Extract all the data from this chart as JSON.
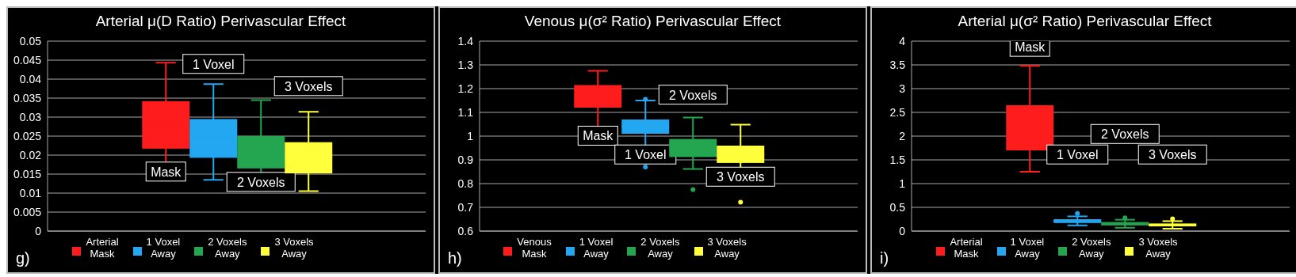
{
  "chart_data": [
    {
      "type": "box",
      "title": "Arterial μ(D Ratio) Perivascular Effect",
      "categories": [
        null
      ],
      "ylim": [
        0,
        0.05
      ],
      "yticks": [
        0,
        0.005,
        0.01,
        0.015,
        0.02,
        0.025,
        0.03,
        0.035,
        0.04,
        0.045,
        0.05
      ],
      "grid": "y",
      "legend": "bottom",
      "series": [
        {
          "name": "Arterial Mask",
          "color": "#ff1c1c",
          "boxes": [
            {
              "low": 0.0143,
              "q1": 0.0217,
              "median": 0.028,
              "q3": 0.0342,
              "high": 0.0443
            }
          ]
        },
        {
          "name": "1 Voxel Away",
          "color": "#22a7f0",
          "boxes": [
            {
              "low": 0.0135,
              "q1": 0.0193,
              "median": 0.0244,
              "q3": 0.0295,
              "high": 0.0387
            }
          ]
        },
        {
          "name": "2 Voxels Away",
          "color": "#24a650",
          "boxes": [
            {
              "low": 0.012,
              "q1": 0.0165,
              "median": 0.0208,
              "q3": 0.025,
              "high": 0.0345
            }
          ]
        },
        {
          "name": "3 Voxels Away",
          "color": "#ffff3c",
          "boxes": [
            {
              "low": 0.0105,
              "q1": 0.0152,
              "median": 0.0193,
              "q3": 0.0234,
              "high": 0.0314
            }
          ]
        }
      ],
      "annotations": [
        "Mask",
        "1 Voxel",
        "2 Voxels",
        "3 Voxels",
        "g)"
      ]
    },
    {
      "type": "box",
      "title": "Venous μ(σ² Ratio) Perivascular Effect",
      "categories": [
        null
      ],
      "ylim": [
        0.6,
        1.4
      ],
      "yticks": [
        0.6,
        0.7,
        0.8,
        0.9,
        1,
        1.1,
        1.2,
        1.3,
        1.4
      ],
      "grid": "y",
      "legend": "bottom",
      "series": [
        {
          "name": "Venous Mask",
          "color": "#ff1c1c",
          "boxes": [
            {
              "low": 1.0,
              "q1": 1.12,
              "median": 1.17,
              "q3": 1.215,
              "high": 1.275
            }
          ]
        },
        {
          "name": "1 Voxel Away",
          "color": "#22a7f0",
          "boxes": [
            {
              "low": 0.935,
              "q1": 1.01,
              "median": 1.04,
              "q3": 1.07,
              "high": 1.15,
              "outliers": [
                0.87,
                1.155
              ]
            }
          ]
        },
        {
          "name": "2 Voxels Away",
          "color": "#24a650",
          "boxes": [
            {
              "low": 0.862,
              "q1": 0.912,
              "median": 0.95,
              "q3": 0.988,
              "high": 1.078,
              "outliers": [
                0.775
              ]
            }
          ]
        },
        {
          "name": "3 Voxels Away",
          "color": "#ffff3c",
          "boxes": [
            {
              "low": 0.83,
              "q1": 0.887,
              "median": 0.92,
              "q3": 0.96,
              "high": 1.048,
              "outliers": [
                0.722
              ]
            }
          ]
        }
      ],
      "annotations": [
        "Mask",
        "1 Voxel",
        "2 Voxels",
        "3 Voxels",
        "h)"
      ]
    },
    {
      "type": "box",
      "title": "Arterial μ(σ² Ratio) Perivascular Effect",
      "categories": [
        null
      ],
      "ylim": [
        0,
        4
      ],
      "yticks": [
        0,
        0.5,
        1,
        1.5,
        2,
        2.5,
        3,
        3.5,
        4
      ],
      "grid": "y",
      "legend": "bottom",
      "series": [
        {
          "name": "Arterial Mask",
          "color": "#ff1c1c",
          "boxes": [
            {
              "low": 1.25,
              "q1": 1.7,
              "median": 2.2,
              "q3": 2.65,
              "high": 3.48
            }
          ]
        },
        {
          "name": "1 Voxel Away",
          "color": "#22a7f0",
          "boxes": [
            {
              "low": 0.12,
              "q1": 0.17,
              "median": 0.21,
              "q3": 0.25,
              "high": 0.31,
              "outliers": [
                0.37
              ]
            }
          ]
        },
        {
          "name": "2 Voxels Away",
          "color": "#24a650",
          "boxes": [
            {
              "low": 0.07,
              "q1": 0.12,
              "median": 0.155,
              "q3": 0.19,
              "high": 0.24,
              "outliers": [
                0.28
              ]
            }
          ]
        },
        {
          "name": "3 Voxels Away",
          "color": "#ffff3c",
          "boxes": [
            {
              "low": 0.05,
              "q1": 0.1,
              "median": 0.13,
              "q3": 0.16,
              "high": 0.21,
              "outliers": [
                0.26
              ]
            }
          ]
        }
      ],
      "annotations": [
        "Mask",
        "1 Voxel",
        "2 Voxels",
        "3 Voxels",
        "i)"
      ]
    }
  ]
}
